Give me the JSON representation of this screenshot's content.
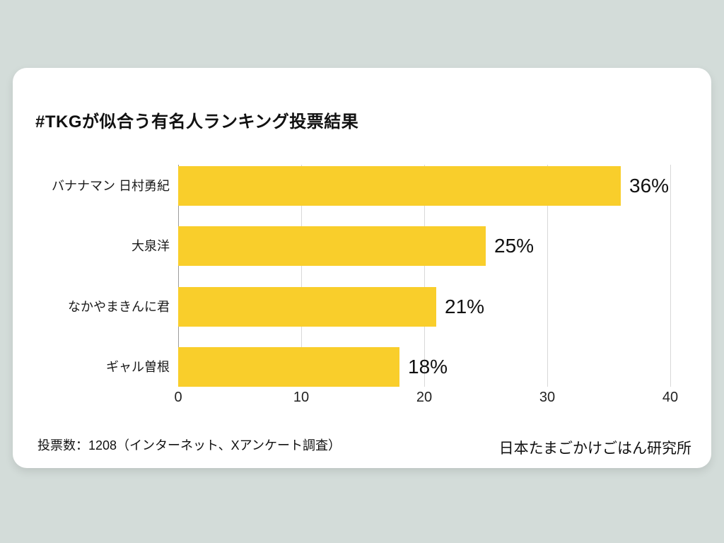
{
  "page": {
    "background_color": "#D3DCD9",
    "card_color": "#FFFFFF"
  },
  "title": "#TKGが似合う有名人ランキング投票結果",
  "chart_data": {
    "type": "bar",
    "orientation": "horizontal",
    "title": "#TKGが似合う有名人ランキング投票結果",
    "categories": [
      "バナナマン 日村勇紀",
      "大泉洋",
      "なかやまきんに君",
      "ギャル曽根"
    ],
    "values": [
      36,
      25,
      21,
      18
    ],
    "value_labels": [
      "36%",
      "25%",
      "21%",
      "18%"
    ],
    "xlabel": "",
    "ylabel": "",
    "xlim": [
      0,
      40
    ],
    "x_ticks": [
      "0",
      "10",
      "20",
      "30",
      "40"
    ],
    "grid": true,
    "legend": false,
    "bar_color": "#F9CE2B",
    "gridline_color": "#D8D8D8",
    "zero_line_color": "#9B9B9B"
  },
  "footer": {
    "left_note": "投票数：1208（インターネット、Xアンケート調査）",
    "right_source": "日本たまごかけごはん研究所"
  }
}
